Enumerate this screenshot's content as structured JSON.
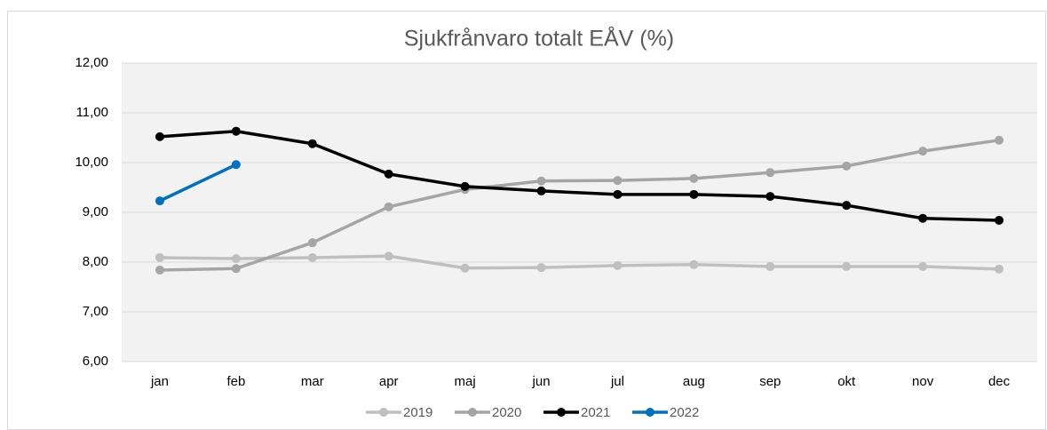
{
  "chart_data": {
    "type": "line",
    "title": "Sjukfrånvaro totalt EÅV (%)",
    "categories": [
      "jan",
      "feb",
      "mar",
      "apr",
      "maj",
      "jun",
      "jul",
      "aug",
      "sep",
      "okt",
      "nov",
      "dec"
    ],
    "series": [
      {
        "name": "2019",
        "color": "#bfbfbf",
        "values": [
          8.09,
          8.07,
          8.09,
          8.12,
          7.88,
          7.89,
          7.93,
          7.95,
          7.91,
          7.91,
          7.91,
          7.86
        ]
      },
      {
        "name": "2020",
        "color": "#a5a5a5",
        "values": [
          7.84,
          7.87,
          8.39,
          9.11,
          9.46,
          9.63,
          9.64,
          9.68,
          9.8,
          9.93,
          10.23,
          10.45
        ]
      },
      {
        "name": "2021",
        "color": "#000000",
        "values": [
          10.52,
          10.63,
          10.38,
          9.77,
          9.52,
          9.43,
          9.36,
          9.36,
          9.32,
          9.14,
          8.88,
          8.84
        ]
      },
      {
        "name": "2022",
        "color": "#0070c0",
        "values": [
          9.23,
          9.96,
          null,
          null,
          null,
          null,
          null,
          null,
          null,
          null,
          null,
          null
        ]
      }
    ],
    "ylim": [
      6,
      12
    ],
    "yticks": [
      {
        "value": 6,
        "label": "6,00"
      },
      {
        "value": 7,
        "label": "7,00"
      },
      {
        "value": 8,
        "label": "8,00"
      },
      {
        "value": 9,
        "label": "9,00"
      },
      {
        "value": 10,
        "label": "10,00"
      },
      {
        "value": 11,
        "label": "11,00"
      },
      {
        "value": 12,
        "label": "12,00"
      }
    ],
    "grid": true,
    "legend": "bottom"
  }
}
